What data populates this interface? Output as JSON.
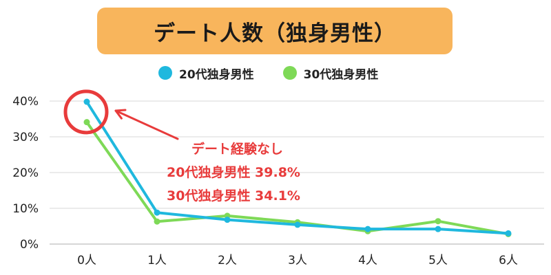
{
  "title": "デート人数（独身男性）",
  "colors": {
    "title_bg": "#f8b55c",
    "series_20s": "#1fb8de",
    "series_30s": "#7ed957",
    "annotation": "#e83b3b"
  },
  "annotation": {
    "heading": "デート経験なし",
    "line_20s": "20代独身男性 39.8%",
    "line_30s": "30代独身男性 34.1%"
  },
  "chart_data": {
    "type": "line",
    "title": "デート人数（独身男性）",
    "categories": [
      "0人",
      "1人",
      "2人",
      "3人",
      "4人",
      "5人",
      "6人"
    ],
    "series": [
      {
        "name": "20代独身男性",
        "color": "#1fb8de",
        "values": [
          39.8,
          8.8,
          6.8,
          5.4,
          4.2,
          4.2,
          3.0
        ]
      },
      {
        "name": "30代独身男性",
        "color": "#7ed957",
        "values": [
          34.1,
          6.3,
          7.9,
          6.1,
          3.6,
          6.4,
          2.8
        ]
      }
    ],
    "y_ticks": [
      "0%",
      "10%",
      "20%",
      "30%",
      "40%"
    ],
    "ylim": [
      0,
      40
    ],
    "grid": true,
    "legend": "top",
    "highlight": {
      "category": "0人",
      "shape": "circle",
      "color": "#e83b3b"
    }
  }
}
